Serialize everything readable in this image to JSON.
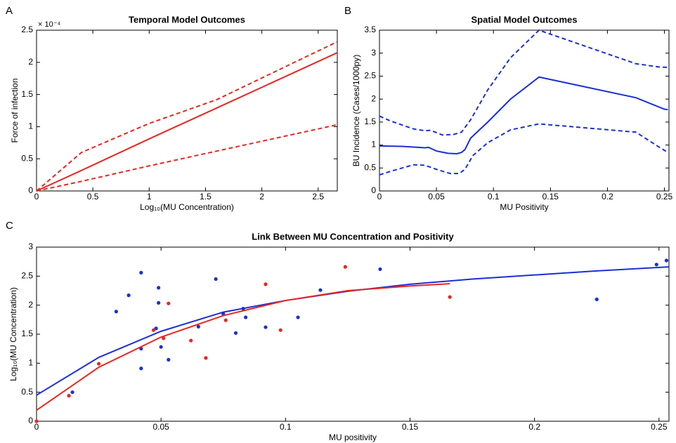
{
  "chart_data": [
    {
      "type": "line",
      "panel_label": "A",
      "title": "Temporal Model Outcomes",
      "x_label": "Log₁₀(MU Concentration)",
      "y_label": "Force of infection",
      "y_scale_label": "× 10⁻⁴",
      "xlim": [
        0,
        2.67
      ],
      "ylim": [
        0,
        2.5
      ],
      "xticks": [
        0,
        0.5,
        1,
        1.5,
        2,
        2.5
      ],
      "yticks": [
        0,
        0.5,
        1,
        1.5,
        2,
        2.5
      ],
      "series": [
        {
          "color": "#e8261f",
          "dashed": false,
          "x": [
            0,
            0.4,
            1,
            1.6,
            2.67
          ],
          "values": [
            0,
            0.32,
            0.81,
            1.29,
            2.15
          ]
        },
        {
          "color": "#e8261f",
          "dashed": true,
          "x": [
            0,
            0.4,
            1,
            1.6,
            2.67
          ],
          "values": [
            0,
            0.6,
            1.05,
            1.42,
            2.32
          ]
        },
        {
          "color": "#e8261f",
          "dashed": true,
          "x": [
            0,
            0.4,
            1,
            1.6,
            2.67
          ],
          "values": [
            0,
            0.15,
            0.39,
            0.62,
            1.03
          ]
        }
      ]
    },
    {
      "type": "line",
      "panel_label": "B",
      "title": "Spatial Model Outcomes",
      "x_label": "MU Positivity",
      "y_label": "BU Incidence (Cases/1000py)",
      "xlim": [
        0,
        0.254
      ],
      "ylim": [
        0,
        3.5
      ],
      "xticks": [
        0,
        0.05,
        0.1,
        0.15,
        0.2,
        0.25
      ],
      "yticks": [
        0,
        0.5,
        1,
        1.5,
        2,
        2.5,
        3,
        3.5
      ],
      "series": [
        {
          "color": "#1a2fd6",
          "dashed": false,
          "x": [
            0,
            0.02,
            0.04,
            0.043,
            0.05,
            0.06,
            0.068,
            0.072,
            0.075,
            0.08,
            0.095,
            0.115,
            0.14,
            0.225,
            0.25,
            0.253
          ],
          "values": [
            0.98,
            0.97,
            0.94,
            0.95,
            0.87,
            0.82,
            0.81,
            0.84,
            0.9,
            1.15,
            1.5,
            2.0,
            2.48,
            2.03,
            1.78,
            1.77
          ]
        },
        {
          "color": "#1a2fd6",
          "dashed": true,
          "x": [
            0,
            0.01,
            0.03,
            0.04,
            0.045,
            0.055,
            0.065,
            0.072,
            0.08,
            0.095,
            0.115,
            0.14,
            0.225,
            0.245,
            0.253
          ],
          "values": [
            1.63,
            1.52,
            1.35,
            1.31,
            1.32,
            1.22,
            1.23,
            1.28,
            1.55,
            2.2,
            2.9,
            3.5,
            2.77,
            2.7,
            2.69
          ]
        },
        {
          "color": "#1a2fd6",
          "dashed": true,
          "x": [
            0,
            0.01,
            0.03,
            0.04,
            0.05,
            0.062,
            0.07,
            0.075,
            0.082,
            0.095,
            0.115,
            0.14,
            0.225,
            0.245,
            0.253
          ],
          "values": [
            0.35,
            0.43,
            0.57,
            0.56,
            0.47,
            0.38,
            0.38,
            0.47,
            0.77,
            1.05,
            1.33,
            1.46,
            1.28,
            0.96,
            0.84
          ]
        }
      ]
    },
    {
      "type": "scatter",
      "panel_label": "C",
      "title": "Link Between MU Concentration and Positivity",
      "x_label": "MU positivity",
      "y_label": "Log₁₀(MU Concentration)",
      "xlim": [
        0,
        0.254
      ],
      "ylim": [
        0,
        3
      ],
      "xticks": [
        0,
        0.05,
        0.1,
        0.15,
        0.2,
        0.25
      ],
      "yticks": [
        0,
        0.5,
        1,
        1.5,
        2,
        2.5,
        3
      ],
      "series": [
        {
          "color": "#1a2fd6",
          "mode": "markers",
          "x": [
            0.0144,
            0.032,
            0.037,
            0.042,
            0.049,
            0.049,
            0.048,
            0.042,
            0.042,
            0.05,
            0.053,
            0.065,
            0.072,
            0.075,
            0.083,
            0.084,
            0.08,
            0.092,
            0.105,
            0.114,
            0.138,
            0.225,
            0.249,
            0.253
          ],
          "values": [
            0.5,
            1.89,
            2.17,
            2.56,
            2.3,
            2.04,
            1.6,
            1.25,
            0.91,
            1.28,
            1.06,
            1.63,
            2.45,
            1.85,
            1.94,
            1.79,
            1.52,
            1.62,
            1.79,
            2.26,
            2.62,
            2.1,
            2.7,
            2.77
          ]
        },
        {
          "color": "#e8261f",
          "mode": "markers",
          "x": [
            0,
            0.013,
            0.025,
            0.047,
            0.051,
            0.053,
            0.062,
            0.068,
            0.076,
            0.092,
            0.098,
            0.124,
            0.166
          ],
          "values": [
            0,
            0.44,
            0.99,
            1.57,
            1.43,
            2.03,
            1.39,
            1.09,
            1.74,
            2.36,
            1.57,
            2.66,
            2.14
          ]
        },
        {
          "color": "#1a2fd6",
          "mode": "line",
          "x": [
            0,
            0.025,
            0.05,
            0.075,
            0.1,
            0.125,
            0.15,
            0.175,
            0.2,
            0.225,
            0.254
          ],
          "values": [
            0.45,
            1.1,
            1.55,
            1.88,
            2.08,
            2.24,
            2.36,
            2.45,
            2.52,
            2.59,
            2.66
          ]
        },
        {
          "color": "#e8261f",
          "mode": "line",
          "x": [
            0,
            0.025,
            0.05,
            0.075,
            0.1,
            0.125,
            0.15,
            0.166
          ],
          "values": [
            0.19,
            0.93,
            1.45,
            1.82,
            2.08,
            2.25,
            2.33,
            2.37
          ]
        }
      ]
    }
  ]
}
